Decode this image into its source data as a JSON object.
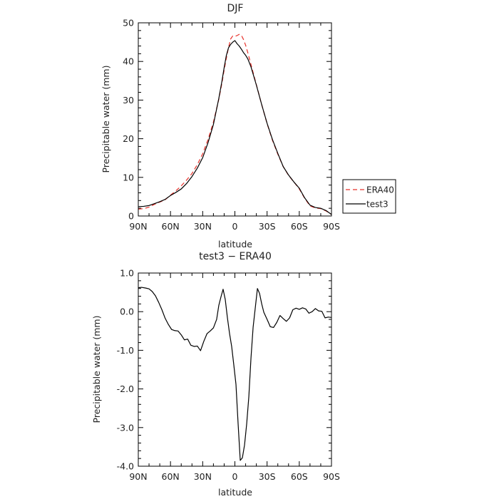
{
  "chart_data": [
    {
      "type": "line",
      "title": "DJF",
      "xlabel": "latitude",
      "ylabel": "Precipitable water (mm)",
      "xlim": [
        90,
        -90
      ],
      "ylim": [
        0,
        50
      ],
      "x_ticks": [
        {
          "value": 90,
          "label": "90N"
        },
        {
          "value": 60,
          "label": "60N"
        },
        {
          "value": 30,
          "label": "30N"
        },
        {
          "value": 0,
          "label": "0"
        },
        {
          "value": -30,
          "label": "30S"
        },
        {
          "value": -60,
          "label": "60S"
        },
        {
          "value": -90,
          "label": "90S"
        }
      ],
      "y_ticks": [
        {
          "value": 0,
          "label": "0"
        },
        {
          "value": 10,
          "label": "10"
        },
        {
          "value": 20,
          "label": "20"
        },
        {
          "value": 30,
          "label": "30"
        },
        {
          "value": 40,
          "label": "40"
        },
        {
          "value": 50,
          "label": "50"
        }
      ],
      "legend_position": "right",
      "series": [
        {
          "name": "ERA40",
          "color": "#e8312a",
          "style": "dashed",
          "x": [
            90,
            85,
            80,
            75,
            70,
            65,
            60,
            55,
            50,
            45,
            40,
            35,
            30,
            25,
            20,
            15,
            12,
            10,
            8,
            6,
            4,
            2,
            0,
            -2,
            -4,
            -6,
            -8,
            -10,
            -12,
            -15,
            -20,
            -25,
            -30,
            -35,
            -40,
            -45,
            -50,
            -55,
            -60,
            -65,
            -70,
            -75,
            -80,
            -85,
            -90
          ],
          "y": [
            1.8,
            1.9,
            2.3,
            3.0,
            3.6,
            4.2,
            5.4,
            6.5,
            7.8,
            9.3,
            11.0,
            13.3,
            16.1,
            19.8,
            24.3,
            30.2,
            34.5,
            37.8,
            40.8,
            43.5,
            45.8,
            46.6,
            46.5,
            46.7,
            47.0,
            46.8,
            45.7,
            44.2,
            42.3,
            39.2,
            34.0,
            28.8,
            23.9,
            19.6,
            16.0,
            12.8,
            10.5,
            8.8,
            7.0,
            4.6,
            2.6,
            2.1,
            1.9,
            1.3,
            0.4
          ]
        },
        {
          "name": "test3",
          "color": "#000000",
          "style": "solid",
          "x": [
            90,
            85,
            80,
            75,
            70,
            65,
            60,
            55,
            50,
            45,
            40,
            35,
            30,
            25,
            20,
            15,
            12,
            10,
            8,
            6,
            4,
            2,
            0,
            -2,
            -4,
            -6,
            -8,
            -10,
            -12,
            -15,
            -20,
            -25,
            -30,
            -35,
            -40,
            -45,
            -50,
            -55,
            -60,
            -65,
            -70,
            -75,
            -80,
            -85,
            -90
          ],
          "y": [
            2.4,
            2.5,
            2.7,
            3.2,
            3.7,
            4.3,
            5.3,
            6.1,
            7.0,
            8.4,
            10.2,
            12.4,
            15.1,
            19.0,
            23.7,
            30.4,
            35.0,
            38.4,
            41.5,
            43.5,
            44.4,
            45.0,
            45.4,
            44.6,
            44.0,
            43.2,
            42.3,
            41.6,
            40.7,
            38.6,
            33.9,
            28.8,
            24.0,
            19.8,
            16.2,
            12.8,
            10.6,
            8.8,
            7.2,
            4.7,
            2.8,
            2.2,
            2.0,
            1.4,
            0.4
          ]
        }
      ]
    },
    {
      "type": "line",
      "title": "test3 − ERA40",
      "xlabel": "latitude",
      "ylabel": "Precipitable water (mm)",
      "xlim": [
        90,
        -90
      ],
      "ylim": [
        -4.0,
        1.0
      ],
      "x_ticks": [
        {
          "value": 90,
          "label": "90N"
        },
        {
          "value": 60,
          "label": "60N"
        },
        {
          "value": 30,
          "label": "30N"
        },
        {
          "value": 0,
          "label": "0"
        },
        {
          "value": -30,
          "label": "30S"
        },
        {
          "value": -60,
          "label": "60S"
        },
        {
          "value": -90,
          "label": "90S"
        }
      ],
      "y_ticks": [
        {
          "value": 1.0,
          "label": "1.0"
        },
        {
          "value": 0.0,
          "label": "0.0"
        },
        {
          "value": -1.0,
          "label": "-1.0"
        },
        {
          "value": -2.0,
          "label": "-2.0"
        },
        {
          "value": -3.0,
          "label": "-3.0"
        },
        {
          "value": -4.0,
          "label": "-4.0"
        }
      ],
      "series": [
        {
          "color": "#000000",
          "style": "solid",
          "x": [
            90,
            87,
            83,
            80,
            77,
            74,
            71,
            68,
            65,
            62,
            59,
            56,
            53,
            50,
            47,
            44,
            41,
            38,
            35,
            32,
            29,
            26,
            23,
            20,
            17,
            15,
            13,
            11,
            9,
            7,
            5,
            3,
            1,
            -1,
            -3,
            -5,
            -7,
            -9,
            -11,
            -13,
            -15,
            -17,
            -19,
            -21,
            -23,
            -25,
            -27,
            -30,
            -33,
            -36,
            -39,
            -42,
            -45,
            -48,
            -51,
            -54,
            -57,
            -60,
            -63,
            -66,
            -69,
            -72,
            -75,
            -78,
            -81,
            -84,
            -87,
            -90
          ],
          "y": [
            0.62,
            0.63,
            0.61,
            0.59,
            0.52,
            0.41,
            0.24,
            0.05,
            -0.17,
            -0.33,
            -0.46,
            -0.49,
            -0.5,
            -0.6,
            -0.73,
            -0.71,
            -0.87,
            -0.9,
            -0.89,
            -1.01,
            -0.77,
            -0.57,
            -0.5,
            -0.42,
            -0.2,
            0.16,
            0.38,
            0.58,
            0.32,
            -0.15,
            -0.56,
            -0.9,
            -1.38,
            -1.88,
            -2.9,
            -3.85,
            -3.78,
            -3.45,
            -2.9,
            -2.2,
            -1.2,
            -0.4,
            0.1,
            0.6,
            0.47,
            0.2,
            -0.02,
            -0.2,
            -0.39,
            -0.41,
            -0.28,
            -0.1,
            -0.18,
            -0.25,
            -0.16,
            0.05,
            0.09,
            0.06,
            0.1,
            0.07,
            -0.04,
            0.0,
            0.08,
            0.02,
            0.01,
            -0.16,
            -0.14,
            -0.15
          ]
        }
      ]
    }
  ]
}
